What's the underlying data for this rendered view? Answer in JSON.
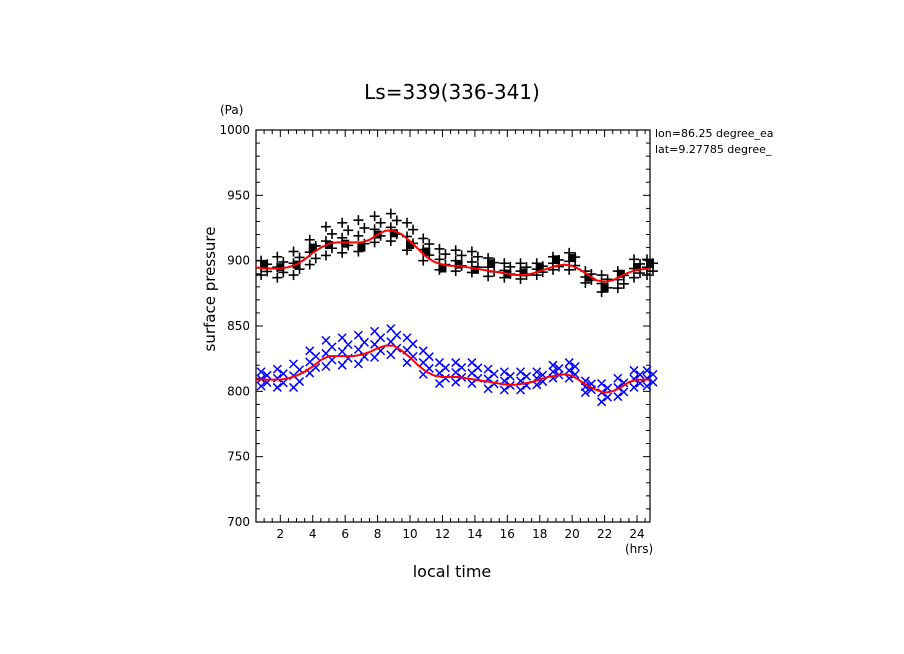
{
  "chart_data": {
    "type": "scatter",
    "title": "Ls=339(336-341)",
    "xlabel": "local time",
    "ylabel": "surface pressure",
    "x_unit": "(hrs)",
    "y_unit": "(Pa)",
    "xlim": [
      0.5,
      24.8
    ],
    "ylim": [
      700,
      1000
    ],
    "x_ticks": [
      2,
      4,
      6,
      8,
      10,
      12,
      14,
      16,
      18,
      20,
      22,
      24
    ],
    "y_ticks": [
      700,
      750,
      800,
      850,
      900,
      950,
      1000
    ],
    "annotations": [
      "lon=86.25 degree_ea",
      "lat=9.27785 degree_"
    ],
    "series": [
      {
        "marker": "plus",
        "color": "#000000",
        "x": [
          1,
          2,
          3,
          4,
          5,
          6,
          7,
          8,
          9,
          10,
          11,
          12,
          13,
          14,
          15,
          16,
          17,
          18,
          19,
          20,
          21,
          22,
          23,
          24,
          24.8
        ],
        "y_min": [
          889,
          887,
          889,
          897,
          904,
          906,
          907,
          914,
          915,
          908,
          900,
          893,
          892,
          891,
          888,
          887,
          886,
          889,
          893,
          893,
          883,
          876,
          879,
          887,
          889
        ],
        "y_max": [
          900,
          903,
          907,
          916,
          926,
          929,
          931,
          934,
          936,
          929,
          917,
          909,
          908,
          907,
          902,
          898,
          898,
          898,
          903,
          906,
          892,
          889,
          892,
          901,
          901
        ]
      },
      {
        "marker": "square",
        "color": "#000000",
        "x": [
          1,
          2,
          3,
          4,
          5,
          6,
          7,
          8,
          9,
          10,
          11,
          12,
          13,
          14,
          15,
          16,
          17,
          18,
          19,
          20,
          21,
          22,
          23,
          24,
          24.8
        ],
        "y": [
          897,
          895,
          897,
          910,
          912,
          913,
          910,
          920,
          921,
          912,
          907,
          894,
          897,
          893,
          898,
          890,
          891,
          895,
          901,
          902,
          887,
          879,
          890,
          895,
          898
        ]
      },
      {
        "marker": "x",
        "color": "#0000ff",
        "x": [
          1,
          2,
          3,
          4,
          5,
          6,
          7,
          8,
          9,
          10,
          11,
          12,
          13,
          14,
          15,
          16,
          17,
          18,
          19,
          20,
          21,
          22,
          23,
          24,
          24.8
        ],
        "y_min": [
          804,
          803,
          803,
          814,
          819,
          820,
          821,
          826,
          828,
          822,
          813,
          806,
          807,
          806,
          802,
          801,
          801,
          805,
          810,
          810,
          799,
          792,
          796,
          803,
          804
        ],
        "y_max": [
          815,
          817,
          821,
          831,
          839,
          841,
          843,
          846,
          848,
          841,
          831,
          822,
          822,
          822,
          817,
          815,
          815,
          815,
          820,
          822,
          808,
          806,
          810,
          816,
          816
        ]
      },
      {
        "marker": "line",
        "color": "#ff0000",
        "x": [
          0.5,
          1,
          1.5,
          2,
          2.5,
          3,
          3.5,
          4,
          4.5,
          5,
          5.5,
          6,
          6.5,
          7,
          7.5,
          8,
          8.5,
          9,
          9.5,
          10,
          10.5,
          11,
          11.5,
          12,
          12.5,
          13,
          13.5,
          14,
          14.5,
          15,
          15.5,
          16,
          16.5,
          17,
          17.5,
          18,
          18.5,
          19,
          19.5,
          20,
          20.5,
          21,
          21.5,
          22,
          22.5,
          23,
          23.5,
          24,
          24.8
        ],
        "y_upper": [
          895,
          894,
          894,
          894,
          895,
          897,
          901,
          906,
          910,
          913,
          914,
          914,
          914,
          914,
          916,
          920,
          923,
          923,
          920,
          915,
          909,
          903,
          899,
          897,
          896,
          896,
          895,
          894,
          893,
          892,
          891,
          890,
          889,
          889,
          890,
          892,
          894,
          896,
          897,
          896,
          893,
          889,
          885,
          884,
          885,
          888,
          891,
          893,
          894
        ],
        "y_lower": [
          809,
          809,
          809,
          809,
          810,
          812,
          815,
          819,
          824,
          827,
          827,
          827,
          827,
          828,
          830,
          833,
          835,
          835,
          831,
          826,
          820,
          815,
          812,
          811,
          811,
          811,
          810,
          809,
          808,
          807,
          806,
          805,
          805,
          806,
          807,
          809,
          811,
          812,
          813,
          812,
          808,
          804,
          801,
          799,
          800,
          803,
          807,
          809,
          809
        ]
      }
    ]
  }
}
